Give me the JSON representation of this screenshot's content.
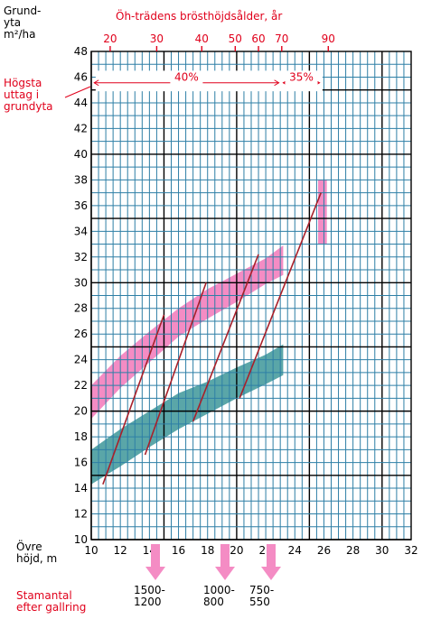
{
  "chart_data": {
    "type": "line",
    "y_axis_title": "Grund-\nyta\nm²/ha",
    "top_axis_title": "Öh-trädens brösthöjdsålder, år",
    "x_axis_title": "Övre\nhöjd, m",
    "highest_removal_label": "Högsta\nuttag i\ngrundyta",
    "stem_count_label": "Stamantal\nefter gallring",
    "xlim": [
      10,
      32
    ],
    "ylim": [
      10,
      48
    ],
    "x_ticks": [
      "10",
      "12",
      "14",
      "16",
      "18",
      "20",
      "22",
      "24",
      "26",
      "28",
      "30",
      "32"
    ],
    "y_ticks": [
      "10",
      "12",
      "14",
      "16",
      "18",
      "20",
      "22",
      "24",
      "26",
      "28",
      "30",
      "32",
      "34",
      "36",
      "38",
      "40",
      "42",
      "44",
      "46",
      "48"
    ],
    "top_ticks": [
      {
        "label": "20",
        "height": 11.3
      },
      {
        "label": "30",
        "height": 14.5
      },
      {
        "label": "40",
        "height": 17.6
      },
      {
        "label": "50",
        "height": 19.9
      },
      {
        "label": "60",
        "height": 21.5
      },
      {
        "label": "70",
        "height": 23.1
      },
      {
        "label": "90",
        "height": 26.3
      }
    ],
    "removal_bands": [
      {
        "label": "40%",
        "from": 10,
        "to": 23
      },
      {
        "label": "35%",
        "from": 23,
        "to": 25.8
      }
    ],
    "upper_band": {
      "color": "#f48cc4",
      "upper": [
        [
          10,
          22
        ],
        [
          12,
          24.3
        ],
        [
          14,
          26.2
        ],
        [
          16,
          28
        ],
        [
          18,
          29.5
        ],
        [
          20,
          30.7
        ],
        [
          22,
          31.9
        ],
        [
          23.2,
          32.9
        ]
      ],
      "lower": [
        [
          10,
          19.4
        ],
        [
          12,
          21.8
        ],
        [
          14,
          23.8
        ],
        [
          16,
          25.8
        ],
        [
          18,
          27.2
        ],
        [
          20,
          28.5
        ],
        [
          22,
          29.9
        ],
        [
          23.2,
          30.6
        ]
      ]
    },
    "lower_band": {
      "color": "#5aa6a8",
      "upper": [
        [
          10,
          17
        ],
        [
          12,
          18.6
        ],
        [
          14,
          20
        ],
        [
          16,
          21.4
        ],
        [
          18,
          22.3
        ],
        [
          20,
          23.4
        ],
        [
          22,
          24.4
        ],
        [
          23.2,
          25.2
        ]
      ],
      "lower": [
        [
          10,
          14.3
        ],
        [
          12,
          15.7
        ],
        [
          14,
          17.2
        ],
        [
          16,
          18.6
        ],
        [
          18,
          19.8
        ],
        [
          20,
          21
        ],
        [
          22,
          22.1
        ],
        [
          23.2,
          22.8
        ]
      ]
    },
    "top_box": {
      "color": "#f48cc4",
      "x": [
        25.6,
        26.2
      ],
      "y": [
        33,
        38
      ]
    },
    "thinning_lines": [
      {
        "x1": 10.8,
        "y1": 14.3,
        "x2": 15,
        "y2": 27.5
      },
      {
        "x1": 13.7,
        "y1": 16.6,
        "x2": 17.9,
        "y2": 30
      },
      {
        "x1": 17,
        "y1": 19.2,
        "x2": 21.5,
        "y2": 32.2
      },
      {
        "x1": 20.2,
        "y1": 21,
        "x2": 25.8,
        "y2": 37
      }
    ],
    "stem_counts": [
      {
        "label": "1500-\n1200",
        "x": 16.5
      },
      {
        "label": "1000-\n800",
        "x": 27.5
      },
      {
        "label": "750-\n550",
        "x": 37
      }
    ],
    "colors": {
      "grid_minor": "#2e7fa6",
      "grid_major": "#000000",
      "red": "#e0001b",
      "line": "#a8202a",
      "arrow": "#f48cc4"
    }
  }
}
